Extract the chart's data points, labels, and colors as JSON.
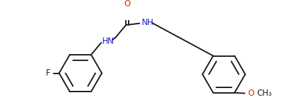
{
  "bg": "#ffffff",
  "lc": "#1c1c1c",
  "nc": "#1a1acc",
  "oc": "#cc3300",
  "lw": 1.4,
  "fs": 8.5,
  "fig_w": 4.3,
  "fig_h": 1.5,
  "dpi": 100,
  "f_label": "F",
  "hn_label": "HN",
  "nh_label": "NH",
  "o_label": "O",
  "ome_o_label": "O",
  "ch3_label": "CH₃"
}
